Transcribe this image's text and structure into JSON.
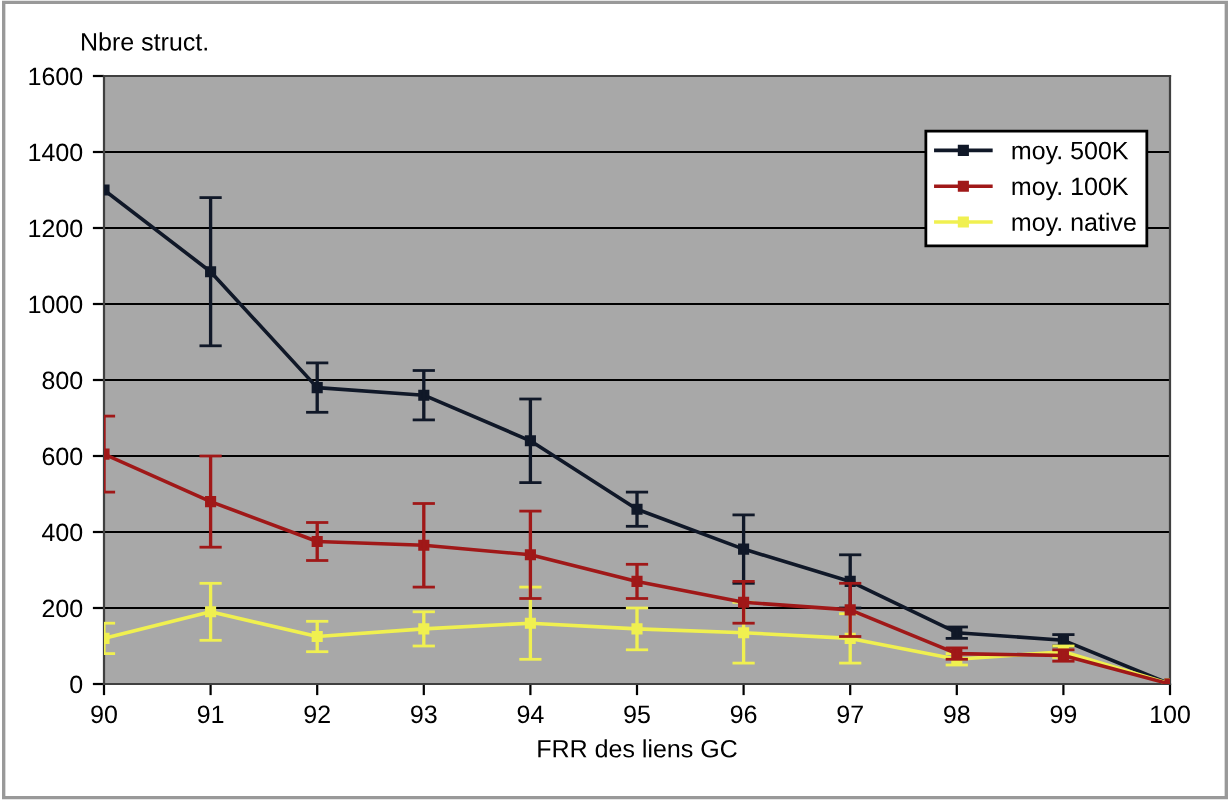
{
  "chart_data": {
    "type": "line",
    "ylabel": "Nbre struct.",
    "xlabel": "FRR des liens GC",
    "categories": [
      "90",
      "91",
      "92",
      "93",
      "94",
      "95",
      "96",
      "97",
      "98",
      "99",
      "100"
    ],
    "series": [
      {
        "name": "moy. 500K",
        "color": "#101828",
        "values": [
          1300,
          1085,
          780,
          760,
          640,
          460,
          355,
          270,
          135,
          115,
          0
        ],
        "errors": [
          null,
          195,
          65,
          65,
          110,
          45,
          90,
          70,
          15,
          15,
          null
        ]
      },
      {
        "name": "moy. 100K",
        "color": "#a01818",
        "values": [
          605,
          480,
          375,
          365,
          340,
          270,
          215,
          195,
          80,
          75,
          0
        ],
        "errors": [
          100,
          120,
          50,
          110,
          115,
          45,
          55,
          70,
          15,
          15,
          null
        ]
      },
      {
        "name": "moy. native",
        "color": "#f0f050",
        "values": [
          120,
          190,
          125,
          145,
          160,
          145,
          135,
          120,
          65,
          85,
          0
        ],
        "errors": [
          40,
          75,
          40,
          45,
          95,
          55,
          80,
          65,
          15,
          15,
          null
        ]
      }
    ],
    "ylim": [
      0,
      1600
    ],
    "yticks": [
      0,
      200,
      400,
      600,
      800,
      1000,
      1200,
      1400,
      1600
    ],
    "grid": "y",
    "legend": "top right",
    "marker": "square",
    "line_style": "solid"
  }
}
